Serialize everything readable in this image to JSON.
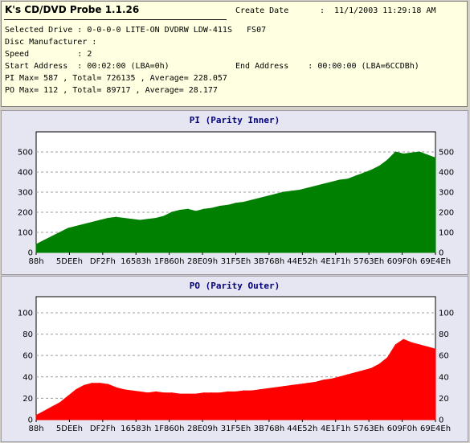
{
  "app": {
    "title": "K's CD/DVD Probe 1.1.26"
  },
  "info": {
    "create_date_label": "Create Date",
    "create_date_value": ":  11/1/2003 11:29:18 AM",
    "drive": "Selected Drive : 0-0-0-0 LITE-ON DVDRW LDW-411S   FS07",
    "manufacturer": "Disc Manufacturer :",
    "speed": "Speed          : 2",
    "start_address": "Start Address  : 00:02:00 (LBA=0h)",
    "end_address": "End Address    : 00:00:00 (LBA=6CCDBh)",
    "pi_summary": "PI Max= 587 , Total= 726135 , Average= 228.057",
    "po_summary": "PO Max= 112 , Total= 89717 , Average= 28.177"
  },
  "colors": {
    "pi": "#008000",
    "po": "#ff0000",
    "plot_bg": "#ffffff",
    "title": "#000080"
  },
  "chart_data": [
    {
      "type": "area",
      "title": "PI (Parity Inner)",
      "x_ticks": [
        "88h",
        "5DEEh",
        "DF2Fh",
        "16583h",
        "1F860h",
        "28E09h",
        "31F5Eh",
        "3B768h",
        "44E52h",
        "4E1F1h",
        "5763Eh",
        "609F0h",
        "69E4Eh"
      ],
      "ylim": [
        0,
        600
      ],
      "y_ticks": [
        0,
        100,
        200,
        300,
        400,
        500
      ],
      "grid": true,
      "series": [
        {
          "x": [
            0.0,
            0.02,
            0.04,
            0.06,
            0.08,
            0.1,
            0.12,
            0.14,
            0.16,
            0.18,
            0.2,
            0.22,
            0.24,
            0.26,
            0.28,
            0.3,
            0.32,
            0.34,
            0.36,
            0.38,
            0.4,
            0.42,
            0.44,
            0.46,
            0.48,
            0.5,
            0.52,
            0.54,
            0.56,
            0.58,
            0.6,
            0.62,
            0.64,
            0.66,
            0.68,
            0.7,
            0.72,
            0.74,
            0.76,
            0.78,
            0.8,
            0.82,
            0.84,
            0.86,
            0.88,
            0.9,
            0.92,
            0.94,
            0.96,
            0.98,
            1.0
          ],
          "values": [
            40,
            60,
            80,
            100,
            120,
            130,
            140,
            150,
            160,
            170,
            175,
            170,
            165,
            160,
            165,
            170,
            180,
            200,
            210,
            215,
            205,
            215,
            220,
            230,
            235,
            245,
            250,
            260,
            270,
            280,
            290,
            300,
            305,
            310,
            320,
            330,
            340,
            350,
            360,
            365,
            380,
            395,
            410,
            430,
            460,
            500,
            490,
            495,
            500,
            485,
            470
          ]
        }
      ]
    },
    {
      "type": "area",
      "title": "PO (Parity Outer)",
      "x_ticks": [
        "88h",
        "5DEEh",
        "DF2Fh",
        "16583h",
        "1F860h",
        "28E09h",
        "31F5Eh",
        "3B768h",
        "44E52h",
        "4E1F1h",
        "5763Eh",
        "609F0h",
        "69E4Eh"
      ],
      "ylim": [
        0,
        115
      ],
      "y_ticks": [
        0,
        20,
        40,
        60,
        80,
        100
      ],
      "grid": true,
      "series": [
        {
          "x": [
            0.0,
            0.02,
            0.04,
            0.06,
            0.08,
            0.1,
            0.12,
            0.14,
            0.16,
            0.18,
            0.2,
            0.22,
            0.24,
            0.26,
            0.28,
            0.3,
            0.32,
            0.34,
            0.36,
            0.38,
            0.4,
            0.42,
            0.44,
            0.46,
            0.48,
            0.5,
            0.52,
            0.54,
            0.56,
            0.58,
            0.6,
            0.62,
            0.64,
            0.66,
            0.68,
            0.7,
            0.72,
            0.74,
            0.76,
            0.78,
            0.8,
            0.82,
            0.84,
            0.86,
            0.88,
            0.9,
            0.92,
            0.94,
            0.96,
            0.98,
            1.0
          ],
          "values": [
            4,
            8,
            12,
            16,
            22,
            28,
            32,
            34,
            34,
            33,
            30,
            28,
            27,
            26,
            25,
            26,
            25,
            25,
            24,
            24,
            24,
            25,
            25,
            25,
            26,
            26,
            27,
            27,
            28,
            29,
            30,
            31,
            32,
            33,
            34,
            35,
            37,
            38,
            40,
            42,
            44,
            46,
            48,
            52,
            58,
            70,
            75,
            72,
            70,
            68,
            66
          ]
        }
      ]
    }
  ]
}
